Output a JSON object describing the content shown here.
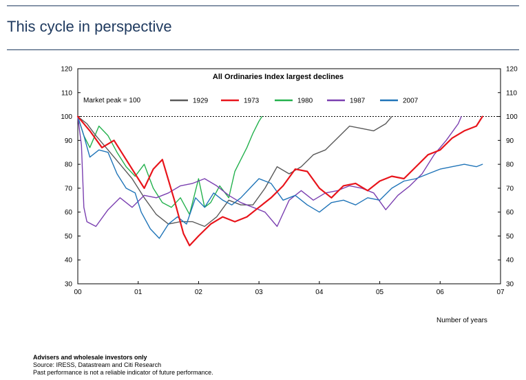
{
  "slide": {
    "title": "This cycle in perspective",
    "footer_bold": "Advisers and wholesale investors only",
    "footer_source": "Source: IRESS, Datastream and Citi Research",
    "footer_disclaimer": "Past performance is not a reliable indicator of future performance."
  },
  "colors": {
    "title": "#1f3a5f",
    "1929": "#595959",
    "1973": "#e8141b",
    "1980": "#23b14d",
    "1987": "#7a3fb0",
    "2007": "#1f74b8"
  },
  "chart_data": {
    "type": "line",
    "title": "All Ordinaries Index largest declines",
    "annotation": "Market peak = 100",
    "xlabel": "Number of years",
    "x_tick_labels": [
      "00",
      "01",
      "02",
      "03",
      "04",
      "05",
      "06",
      "07"
    ],
    "y_tick_labels": [
      "120",
      "110",
      "100",
      "90",
      "80",
      "70",
      "60",
      "50",
      "40",
      "30"
    ],
    "xlim": [
      0,
      7
    ],
    "ylim": [
      30,
      120
    ],
    "reference_line": 100,
    "series": [
      {
        "name": "1929",
        "x": [
          0,
          0.15,
          0.3,
          0.5,
          0.7,
          0.9,
          1.1,
          1.3,
          1.5,
          1.7,
          1.9,
          2.1,
          2.3,
          2.5,
          2.7,
          2.9,
          3.1,
          3.3,
          3.5,
          3.7,
          3.9,
          4.1,
          4.3,
          4.5,
          4.7,
          4.9,
          5.1,
          5.2
        ],
        "values": [
          100,
          97,
          92,
          86,
          80,
          74,
          66,
          59,
          55,
          56,
          56,
          54,
          58,
          65,
          63,
          63,
          70,
          79,
          76,
          79,
          84,
          86,
          91,
          96,
          95,
          94,
          97,
          100
        ]
      },
      {
        "name": "1973",
        "x": [
          0,
          0.2,
          0.4,
          0.6,
          0.8,
          1.0,
          1.1,
          1.25,
          1.4,
          1.6,
          1.75,
          1.85,
          2.0,
          2.2,
          2.4,
          2.6,
          2.8,
          3.0,
          3.2,
          3.4,
          3.6,
          3.8,
          4.0,
          4.2,
          4.4,
          4.6,
          4.8,
          5.0,
          5.2,
          5.4,
          5.6,
          5.8,
          6.0,
          6.2,
          6.4,
          6.6,
          6.7
        ],
        "values": [
          100,
          94,
          87,
          90,
          82,
          74,
          70,
          78,
          82,
          65,
          51,
          46,
          50,
          55,
          58,
          56,
          58,
          62,
          66,
          71,
          78,
          77,
          70,
          66,
          71,
          72,
          69,
          73,
          75,
          74,
          79,
          84,
          86,
          91,
          94,
          96,
          100
        ]
      },
      {
        "name": "1980",
        "x": [
          0,
          0.1,
          0.2,
          0.35,
          0.5,
          0.65,
          0.8,
          0.95,
          1.1,
          1.25,
          1.4,
          1.55,
          1.7,
          1.85,
          2.0,
          2.1,
          2.2,
          2.35,
          2.5,
          2.6,
          2.7,
          2.8,
          2.9,
          3.0,
          3.05
        ],
        "values": [
          100,
          92,
          87,
          96,
          92,
          85,
          79,
          75,
          80,
          70,
          64,
          62,
          66,
          59,
          74,
          62,
          64,
          71,
          66,
          77,
          82,
          87,
          93,
          98,
          100
        ]
      },
      {
        "name": "1987",
        "x": [
          0,
          0.06,
          0.1,
          0.15,
          0.3,
          0.5,
          0.7,
          0.9,
          1.1,
          1.3,
          1.5,
          1.7,
          1.9,
          2.1,
          2.3,
          2.5,
          2.7,
          2.9,
          3.1,
          3.3,
          3.5,
          3.7,
          3.9,
          4.1,
          4.3,
          4.5,
          4.7,
          4.9,
          5.1,
          5.3,
          5.5,
          5.7,
          5.9,
          6.1,
          6.3,
          6.35
        ],
        "values": [
          100,
          88,
          62,
          56,
          54,
          61,
          66,
          62,
          67,
          66,
          68,
          71,
          72,
          74,
          71,
          67,
          64,
          62,
          60,
          54,
          65,
          69,
          65,
          68,
          69,
          71,
          70,
          68,
          61,
          67,
          71,
          76,
          84,
          90,
          97,
          100
        ]
      },
      {
        "name": "2007",
        "x": [
          0,
          0.1,
          0.2,
          0.35,
          0.5,
          0.65,
          0.8,
          0.95,
          1.05,
          1.2,
          1.35,
          1.5,
          1.65,
          1.8,
          1.95,
          2.1,
          2.25,
          2.4,
          2.55,
          2.7,
          2.85,
          3.0,
          3.2,
          3.4,
          3.6,
          3.8,
          4.0,
          4.2,
          4.4,
          4.6,
          4.8,
          5.0,
          5.2,
          5.4,
          5.6,
          5.8,
          6.0,
          6.2,
          6.4,
          6.6,
          6.7
        ],
        "values": [
          100,
          92,
          83,
          86,
          85,
          76,
          70,
          68,
          60,
          53,
          49,
          55,
          58,
          55,
          66,
          62,
          68,
          65,
          63,
          66,
          70,
          74,
          72,
          65,
          67,
          63,
          60,
          64,
          65,
          63,
          66,
          65,
          70,
          73,
          74,
          76,
          78,
          79,
          80,
          79,
          80
        ]
      }
    ]
  }
}
